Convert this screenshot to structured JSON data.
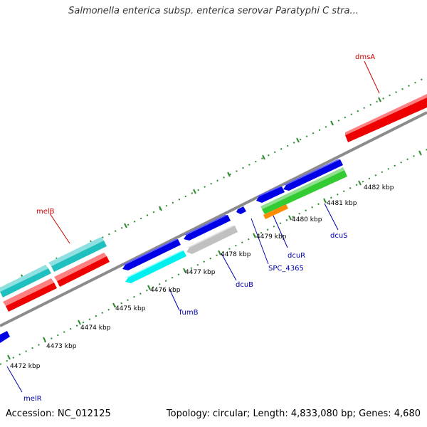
{
  "header": {
    "title": "Salmonella enterica subsp. enterica serovar Paratyphi C stra..."
  },
  "footer": {
    "accession": "Accession: NC_012125",
    "summary": "Topology: circular; Length: 4,833,080 bp; Genes: 4,680"
  },
  "colors": {
    "backbone": "#8c8c8c",
    "tick": "#2e8b2e",
    "forward_label": "#cc0000",
    "reverse_label": "#0000aa",
    "blue": "#0000e6",
    "red": "#ee0000",
    "cyan_fwd": "#20c0c0",
    "cyan_rev": "#00f0f0",
    "gray": "#c0c0c0",
    "green": "#33cc33",
    "orange": "#ff8c00"
  },
  "scale": {
    "ticks": [
      {
        "label": "4472 kbp"
      },
      {
        "label": "4473 kbp"
      },
      {
        "label": "4474 kbp"
      },
      {
        "label": "4475 kbp"
      },
      {
        "label": "4476 kbp"
      },
      {
        "label": "4477 kbp"
      },
      {
        "label": "4478 kbp"
      },
      {
        "label": "4479 kbp"
      },
      {
        "label": "4480 kbp"
      },
      {
        "label": "4481 kbp"
      },
      {
        "label": "4482 kbp"
      }
    ]
  },
  "genes": {
    "forward_labels": [
      {
        "name": "melB",
        "color": "#cc0000"
      },
      {
        "name": "dmsA",
        "color": "#cc0000"
      }
    ],
    "reverse_labels": [
      {
        "name": "melR",
        "color": "#0000aa"
      },
      {
        "name": "fumB",
        "color": "#0000aa"
      },
      {
        "name": "dcuB",
        "color": "#0000aa"
      },
      {
        "name": "SPC_4365",
        "color": "#0000aa"
      },
      {
        "name": "dcuR",
        "color": "#0000aa"
      },
      {
        "name": "dcuS",
        "color": "#0000aa"
      }
    ]
  }
}
